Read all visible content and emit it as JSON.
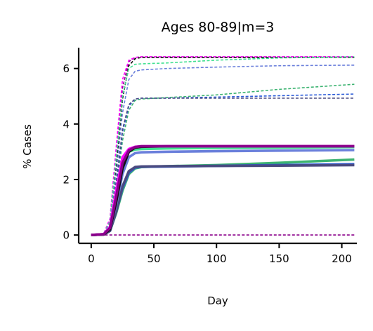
{
  "chart_data": {
    "type": "line",
    "title": "Ages 80-89|m=3",
    "xlabel": "Day",
    "ylabel": "% Cases",
    "xlim": [
      -10,
      212
    ],
    "ylim": [
      -0.3,
      6.75
    ],
    "xticks": [
      0,
      50,
      100,
      150,
      200
    ],
    "yticks": [
      0,
      2,
      4,
      6
    ],
    "grid": false,
    "legend": "none",
    "series": [
      {
        "style": "dashed",
        "color": "#8b008b",
        "x": [
          0,
          10,
          15,
          20,
          25,
          30,
          35,
          40,
          60,
          100,
          150,
          210
        ],
        "y": [
          0,
          0.05,
          0.5,
          2.8,
          5.3,
          6.25,
          6.4,
          6.42,
          6.42,
          6.42,
          6.42,
          6.42
        ]
      },
      {
        "style": "dashed",
        "color": "#ff00ff",
        "x": [
          0,
          10,
          15,
          20,
          25,
          30,
          35,
          40,
          60,
          100,
          150,
          210
        ],
        "y": [
          0,
          0.05,
          0.6,
          3.2,
          5.6,
          6.3,
          6.4,
          6.42,
          6.42,
          6.42,
          6.42,
          6.42
        ]
      },
      {
        "style": "dashed",
        "color": "#111111",
        "x": [
          0,
          10,
          15,
          20,
          25,
          30,
          35,
          40,
          60,
          100,
          150,
          210
        ],
        "y": [
          0,
          0.04,
          0.4,
          2.4,
          4.9,
          6.1,
          6.35,
          6.4,
          6.4,
          6.4,
          6.4,
          6.4
        ]
      },
      {
        "style": "dashed",
        "color": "#40e090",
        "x": [
          0,
          10,
          15,
          20,
          25,
          30,
          35,
          40,
          60,
          100,
          150,
          210
        ],
        "y": [
          0,
          0.05,
          0.5,
          2.8,
          5.0,
          6.0,
          6.15,
          6.17,
          6.2,
          6.3,
          6.38,
          6.42
        ]
      },
      {
        "style": "dashed",
        "color": "#6a7fdb",
        "x": [
          0,
          10,
          15,
          20,
          25,
          30,
          35,
          40,
          60,
          100,
          150,
          210
        ],
        "y": [
          0,
          0.04,
          0.4,
          2.2,
          4.4,
          5.6,
          5.9,
          5.95,
          6.0,
          6.05,
          6.1,
          6.12
        ]
      },
      {
        "style": "dashed",
        "color": "#3cb371",
        "x": [
          0,
          10,
          15,
          20,
          25,
          30,
          35,
          40,
          60,
          100,
          150,
          210
        ],
        "y": [
          0,
          0.03,
          0.3,
          1.6,
          3.4,
          4.5,
          4.85,
          4.9,
          4.95,
          5.05,
          5.25,
          5.43
        ]
      },
      {
        "style": "dashed",
        "color": "#2a5ad8",
        "x": [
          0,
          10,
          15,
          20,
          25,
          30,
          35,
          40,
          60,
          100,
          150,
          210
        ],
        "y": [
          0,
          0.03,
          0.3,
          1.8,
          3.7,
          4.65,
          4.9,
          4.93,
          4.93,
          4.97,
          5.02,
          5.08
        ]
      },
      {
        "style": "dashed",
        "color": "#4a4a80",
        "x": [
          0,
          10,
          15,
          20,
          25,
          30,
          35,
          40,
          60,
          100,
          150,
          210
        ],
        "y": [
          0,
          0.03,
          0.35,
          1.9,
          3.8,
          4.7,
          4.9,
          4.93,
          4.93,
          4.93,
          4.93,
          4.93
        ]
      },
      {
        "style": "dashed",
        "color": "#8b008b",
        "x": [
          0,
          210
        ],
        "y": [
          0,
          0
        ]
      },
      {
        "style": "solid",
        "color": "#3cb371",
        "x": [
          0,
          10,
          15,
          20,
          25,
          30,
          35,
          40,
          60,
          100,
          150,
          210
        ],
        "y": [
          0,
          0.02,
          0.15,
          0.8,
          1.6,
          2.2,
          2.4,
          2.45,
          2.48,
          2.52,
          2.6,
          2.72
        ]
      },
      {
        "style": "solid",
        "color": "#2a5ad8",
        "x": [
          0,
          10,
          15,
          20,
          25,
          30,
          35,
          40,
          60,
          100,
          150,
          210
        ],
        "y": [
          0,
          0.02,
          0.15,
          0.85,
          1.7,
          2.25,
          2.43,
          2.46,
          2.47,
          2.49,
          2.52,
          2.55
        ]
      },
      {
        "style": "solid",
        "color": "#4a4a80",
        "x": [
          0,
          10,
          15,
          20,
          25,
          30,
          35,
          40,
          60,
          100,
          150,
          210
        ],
        "y": [
          0,
          0.02,
          0.15,
          0.85,
          1.75,
          2.3,
          2.45,
          2.47,
          2.48,
          2.49,
          2.5,
          2.52
        ]
      },
      {
        "style": "solid",
        "color": "#6a7fdb",
        "x": [
          0,
          10,
          15,
          20,
          25,
          30,
          35,
          40,
          60,
          100,
          150,
          210
        ],
        "y": [
          0,
          0.02,
          0.2,
          1.1,
          2.2,
          2.8,
          2.95,
          2.98,
          3.0,
          3.02,
          3.04,
          3.06
        ]
      },
      {
        "style": "solid",
        "color": "#40e090",
        "x": [
          0,
          10,
          15,
          20,
          25,
          30,
          35,
          40,
          60,
          100,
          150,
          210
        ],
        "y": [
          0,
          0.02,
          0.25,
          1.4,
          2.5,
          3.0,
          3.08,
          3.1,
          3.12,
          3.14,
          3.15,
          3.17
        ]
      },
      {
        "style": "solid",
        "color": "#111111",
        "x": [
          0,
          10,
          15,
          20,
          25,
          30,
          35,
          40,
          60,
          100,
          150,
          210
        ],
        "y": [
          0,
          0.02,
          0.2,
          1.2,
          2.4,
          3.0,
          3.15,
          3.18,
          3.2,
          3.2,
          3.2,
          3.2
        ]
      },
      {
        "style": "solid",
        "color": "#ff00ff",
        "x": [
          0,
          10,
          15,
          20,
          25,
          30,
          35,
          40,
          60,
          100,
          150,
          210
        ],
        "y": [
          0,
          0.03,
          0.3,
          1.6,
          2.8,
          3.1,
          3.18,
          3.2,
          3.2,
          3.2,
          3.2,
          3.2
        ]
      },
      {
        "style": "solid",
        "color": "#8b008b",
        "x": [
          0,
          10,
          15,
          20,
          25,
          30,
          35,
          40,
          60,
          100,
          150,
          210
        ],
        "y": [
          0,
          0.03,
          0.25,
          1.4,
          2.6,
          3.05,
          3.17,
          3.2,
          3.2,
          3.2,
          3.2,
          3.2
        ]
      }
    ]
  }
}
